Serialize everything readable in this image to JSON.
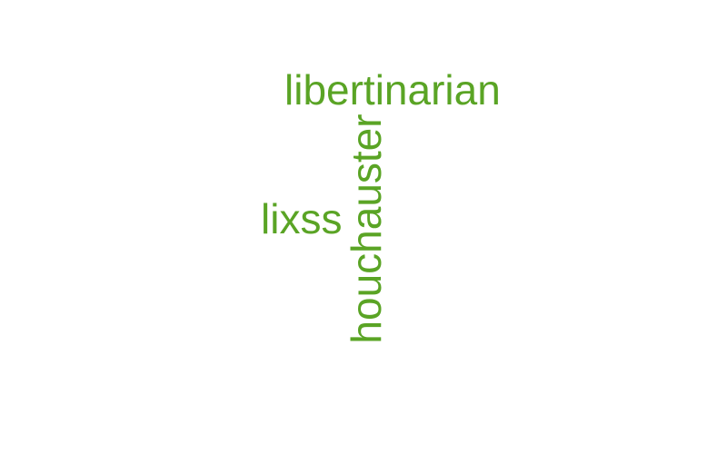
{
  "colors": {
    "background": "#ffffff",
    "word": "#5aa425"
  },
  "words": [
    {
      "text": "libertinarian",
      "orientation": "horizontal"
    },
    {
      "text": "houchauster",
      "orientation": "vertical"
    },
    {
      "text": "lixss",
      "orientation": "horizontal"
    }
  ]
}
